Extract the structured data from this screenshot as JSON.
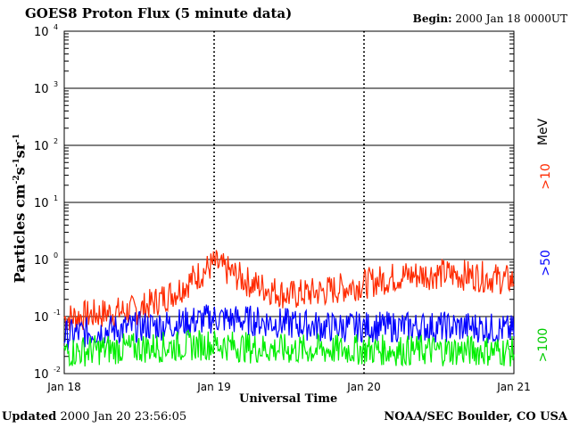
{
  "header": {
    "title": "GOES8 Proton Flux (5 minute data)",
    "begin_label": "Begin:",
    "begin_value": "2000 Jan 18 0000UT"
  },
  "footer": {
    "updated_label": "Updated",
    "updated_value": "2000 Jan 20 23:56:05",
    "source": "NOAA/SEC Boulder, CO USA"
  },
  "chart_data": {
    "type": "line",
    "title": "GOES8 Proton Flux (5 minute data)",
    "xlabel": "Universal Time",
    "ylabel": "Particles cm-2s-1sr-1",
    "ylog": true,
    "ylim": [
      0.01,
      10000
    ],
    "yticks": [
      {
        "value": 0.01,
        "base": "10",
        "exp": "-2"
      },
      {
        "value": 0.1,
        "base": "10",
        "exp": "-1"
      },
      {
        "value": 1,
        "base": "10",
        "exp": "0"
      },
      {
        "value": 10,
        "base": "10",
        "exp": "1"
      },
      {
        "value": 100,
        "base": "10",
        "exp": "2"
      },
      {
        "value": 1000,
        "base": "10",
        "exp": "3"
      },
      {
        "value": 10000,
        "base": "10",
        "exp": "4"
      }
    ],
    "x_tick_labels": [
      "Jan 18",
      "Jan 19",
      "Jan 20",
      "Jan 21"
    ],
    "xlim": [
      "2000-01-18",
      "2000-01-21"
    ],
    "grid": true,
    "series": [
      {
        "name": ">10 MeV",
        "color": "#ff2a00",
        "x": [
          "2000-01-18",
          "2000-01-18 06:00",
          "2000-01-18 12:00",
          "2000-01-18 18:00",
          "2000-01-19",
          "2000-01-19 06:00",
          "2000-01-19 12:00",
          "2000-01-19 18:00",
          "2000-01-20",
          "2000-01-20 06:00",
          "2000-01-20 12:00",
          "2000-01-20 18:00",
          "2000-01-21"
        ],
        "values": [
          0.1,
          0.12,
          0.14,
          0.3,
          0.9,
          0.4,
          0.25,
          0.3,
          0.4,
          0.55,
          0.6,
          0.55,
          0.45
        ]
      },
      {
        "name": ">50",
        "color": "#0000ff",
        "x": [
          "2000-01-18",
          "2000-01-18 06:00",
          "2000-01-18 12:00",
          "2000-01-18 18:00",
          "2000-01-19",
          "2000-01-19 06:00",
          "2000-01-19 12:00",
          "2000-01-19 18:00",
          "2000-01-20",
          "2000-01-20 06:00",
          "2000-01-20 12:00",
          "2000-01-20 18:00",
          "2000-01-21"
        ],
        "values": [
          0.05,
          0.06,
          0.07,
          0.08,
          0.1,
          0.09,
          0.08,
          0.07,
          0.07,
          0.07,
          0.07,
          0.07,
          0.06
        ]
      },
      {
        "name": ">100",
        "color": "#00ee00",
        "x": [
          "2000-01-18",
          "2000-01-18 06:00",
          "2000-01-18 12:00",
          "2000-01-18 18:00",
          "2000-01-19",
          "2000-01-19 06:00",
          "2000-01-19 12:00",
          "2000-01-19 18:00",
          "2000-01-20",
          "2000-01-20 06:00",
          "2000-01-20 12:00",
          "2000-01-20 18:00",
          "2000-01-21"
        ],
        "values": [
          0.025,
          0.028,
          0.03,
          0.032,
          0.035,
          0.03,
          0.028,
          0.028,
          0.028,
          0.027,
          0.027,
          0.027,
          0.026
        ]
      }
    ],
    "side_labels": {
      "mev": "MeV",
      "g10": ">10",
      "g50": ">50",
      "g100": ">100"
    }
  }
}
